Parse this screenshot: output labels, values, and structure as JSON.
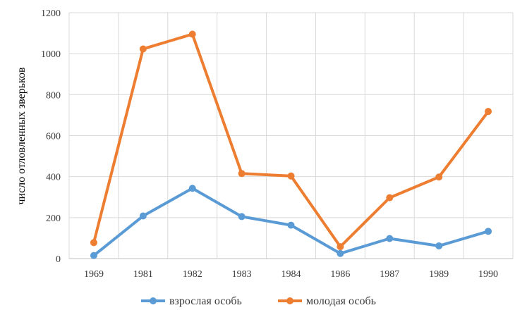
{
  "chart_data": {
    "type": "line",
    "title": "",
    "xlabel": "",
    "ylabel": "число отловленных зверьков",
    "categories": [
      "1969",
      "1981",
      "1982",
      "1983",
      "1984",
      "1986",
      "1987",
      "1989",
      "1990"
    ],
    "yticks": [
      "0",
      "200",
      "400",
      "600",
      "800",
      "1000",
      "1200"
    ],
    "ylim": [
      0,
      1200
    ],
    "grid": true,
    "legend_position": "bottom",
    "series": [
      {
        "name": "взрослая особь",
        "color": "#5b9bd5",
        "values": [
          15,
          208,
          343,
          205,
          163,
          25,
          98,
          62,
          133
        ]
      },
      {
        "name": "молодая особь",
        "color": "#ed7d31",
        "values": [
          78,
          1023,
          1095,
          415,
          403,
          58,
          297,
          398,
          718
        ]
      }
    ]
  }
}
